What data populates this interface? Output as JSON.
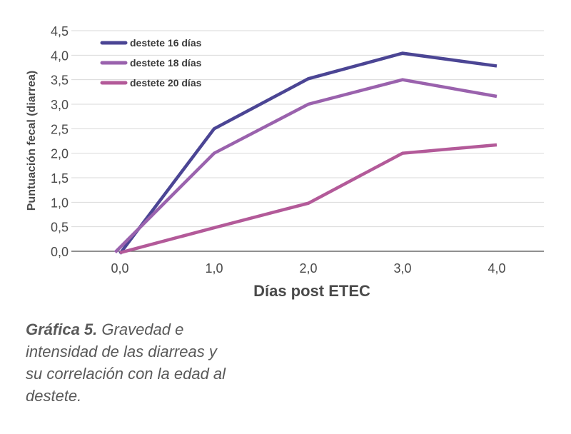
{
  "chart_data": {
    "type": "line",
    "x": [
      0.0,
      1.0,
      2.0,
      3.0,
      4.0
    ],
    "x_tick_labels": [
      "0,0",
      "1,0",
      "2,0",
      "3,0",
      "4,0"
    ],
    "y_tick_labels": [
      "0,0",
      "0,5",
      "1,0",
      "1,5",
      "2,0",
      "2,5",
      "3,0",
      "3,5",
      "4,0",
      "4,5"
    ],
    "ylim": [
      0,
      4.5
    ],
    "xlabel": "Días post ETEC",
    "ylabel": "Puntuación fecal (diarrea)",
    "grid": true,
    "legend_position": "top-left",
    "series": [
      {
        "name": "destete 16 días",
        "color": "#4b4594",
        "x": [
          0.0,
          1.0,
          2.0,
          3.0,
          4.0
        ],
        "values": [
          -0.05,
          2.5,
          3.52,
          4.04,
          3.78
        ]
      },
      {
        "name": "destete 18 días",
        "color": "#9a62ad",
        "x": [
          -0.05,
          1.0,
          2.0,
          3.0,
          4.0
        ],
        "values": [
          -0.02,
          2.0,
          3.0,
          3.5,
          3.16
        ]
      },
      {
        "name": "destete 20 días",
        "color": "#b35a99",
        "x": [
          0.0,
          1.0,
          2.0,
          3.0,
          4.0
        ],
        "values": [
          -0.03,
          0.48,
          0.98,
          2.0,
          2.17
        ]
      }
    ]
  },
  "caption": {
    "label": "Gráfica 5.",
    "text": " Gravedad e intensidad de las diarreas y su correlación con la edad al destete."
  }
}
